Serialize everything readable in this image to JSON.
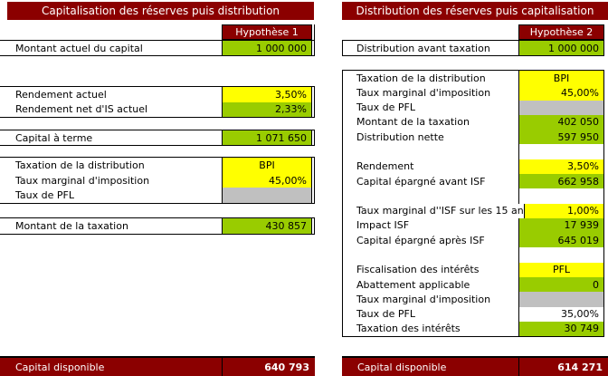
{
  "colors": {
    "header_dark_red": "#8B0000",
    "result_green": "#99CC00",
    "input_yellow": "#FFFF00",
    "disabled_gray": "#C0C0C0"
  },
  "left_panel": {
    "title": "Capitalisation des réserves puis distribution",
    "hypothesis": "Hypothèse 1",
    "sections": [
      {
        "rows": [
          {
            "label": "Montant actuel du capital",
            "value": "1 000 000",
            "fill": "green"
          }
        ]
      },
      {
        "rows": [
          {
            "label": "Rendement actuel",
            "value": "3,50%",
            "fill": "yellow"
          },
          {
            "label": "Rendement net d'IS actuel",
            "value": "2,33%",
            "fill": "green"
          }
        ]
      },
      {
        "rows": [
          {
            "label": "Capital à terme",
            "value": "1 071 650",
            "fill": "green"
          }
        ]
      },
      {
        "rows": [
          {
            "label": "Taxation de la distribution",
            "value": "BPI",
            "fill": "yellow"
          },
          {
            "label": "Taux marginal d'imposition",
            "value": "45,00%",
            "fill": "yellow"
          },
          {
            "label": "Taux de PFL",
            "value": "",
            "fill": "gray"
          }
        ]
      },
      {
        "rows": [
          {
            "label": "Montant de la taxation",
            "value": "430 857",
            "fill": "green"
          }
        ]
      }
    ],
    "footer": {
      "label": "Capital disponible",
      "value": "640 793"
    }
  },
  "right_panel": {
    "title": "Distribution des réserves puis capitalisation",
    "hypothesis": "Hypothèse 2",
    "intro_rows": [
      {
        "label": "Distribution avant taxation",
        "value": "1 000 000",
        "fill": "green"
      }
    ],
    "rows": [
      {
        "label": "Taxation de la distribution",
        "value": "BPI",
        "fill": "yellow"
      },
      {
        "label": "Taux marginal d'imposition",
        "value": "45,00%",
        "fill": "yellow"
      },
      {
        "label": "Taux de PFL",
        "value": "",
        "fill": "gray"
      },
      {
        "label": "Montant de la taxation",
        "value": "402 050",
        "fill": "green"
      },
      {
        "label": "Distribution nette",
        "value": "597 950",
        "fill": "green"
      },
      {
        "label": "",
        "value": "",
        "fill": "white"
      },
      {
        "label": "Rendement",
        "value": "3,50%",
        "fill": "yellow"
      },
      {
        "label": "Capital épargné avant ISF",
        "value": "662 958",
        "fill": "green"
      },
      {
        "label": "",
        "value": "",
        "fill": "white"
      },
      {
        "label": "Taux marginal d''ISF sur les 15 an",
        "value": "1,00%",
        "fill": "yellow"
      },
      {
        "label": "Impact ISF",
        "value": "17 939",
        "fill": "green"
      },
      {
        "label": "Capital épargné après ISF",
        "value": "645 019",
        "fill": "green"
      },
      {
        "label": "",
        "value": "",
        "fill": "white"
      },
      {
        "label": "Fiscalisation des intérêts",
        "value": "PFL",
        "fill": "yellow"
      },
      {
        "label": "Abattement applicable",
        "value": "0",
        "fill": "green"
      },
      {
        "label": "Taux marginal d'imposition",
        "value": "",
        "fill": "gray"
      },
      {
        "label": "Taux de PFL",
        "value": "35,00%",
        "fill": "white"
      },
      {
        "label": "Taxation des intérêts",
        "value": "30 749",
        "fill": "green"
      }
    ],
    "footer": {
      "label": "Capital disponible",
      "value": "614 271"
    }
  }
}
